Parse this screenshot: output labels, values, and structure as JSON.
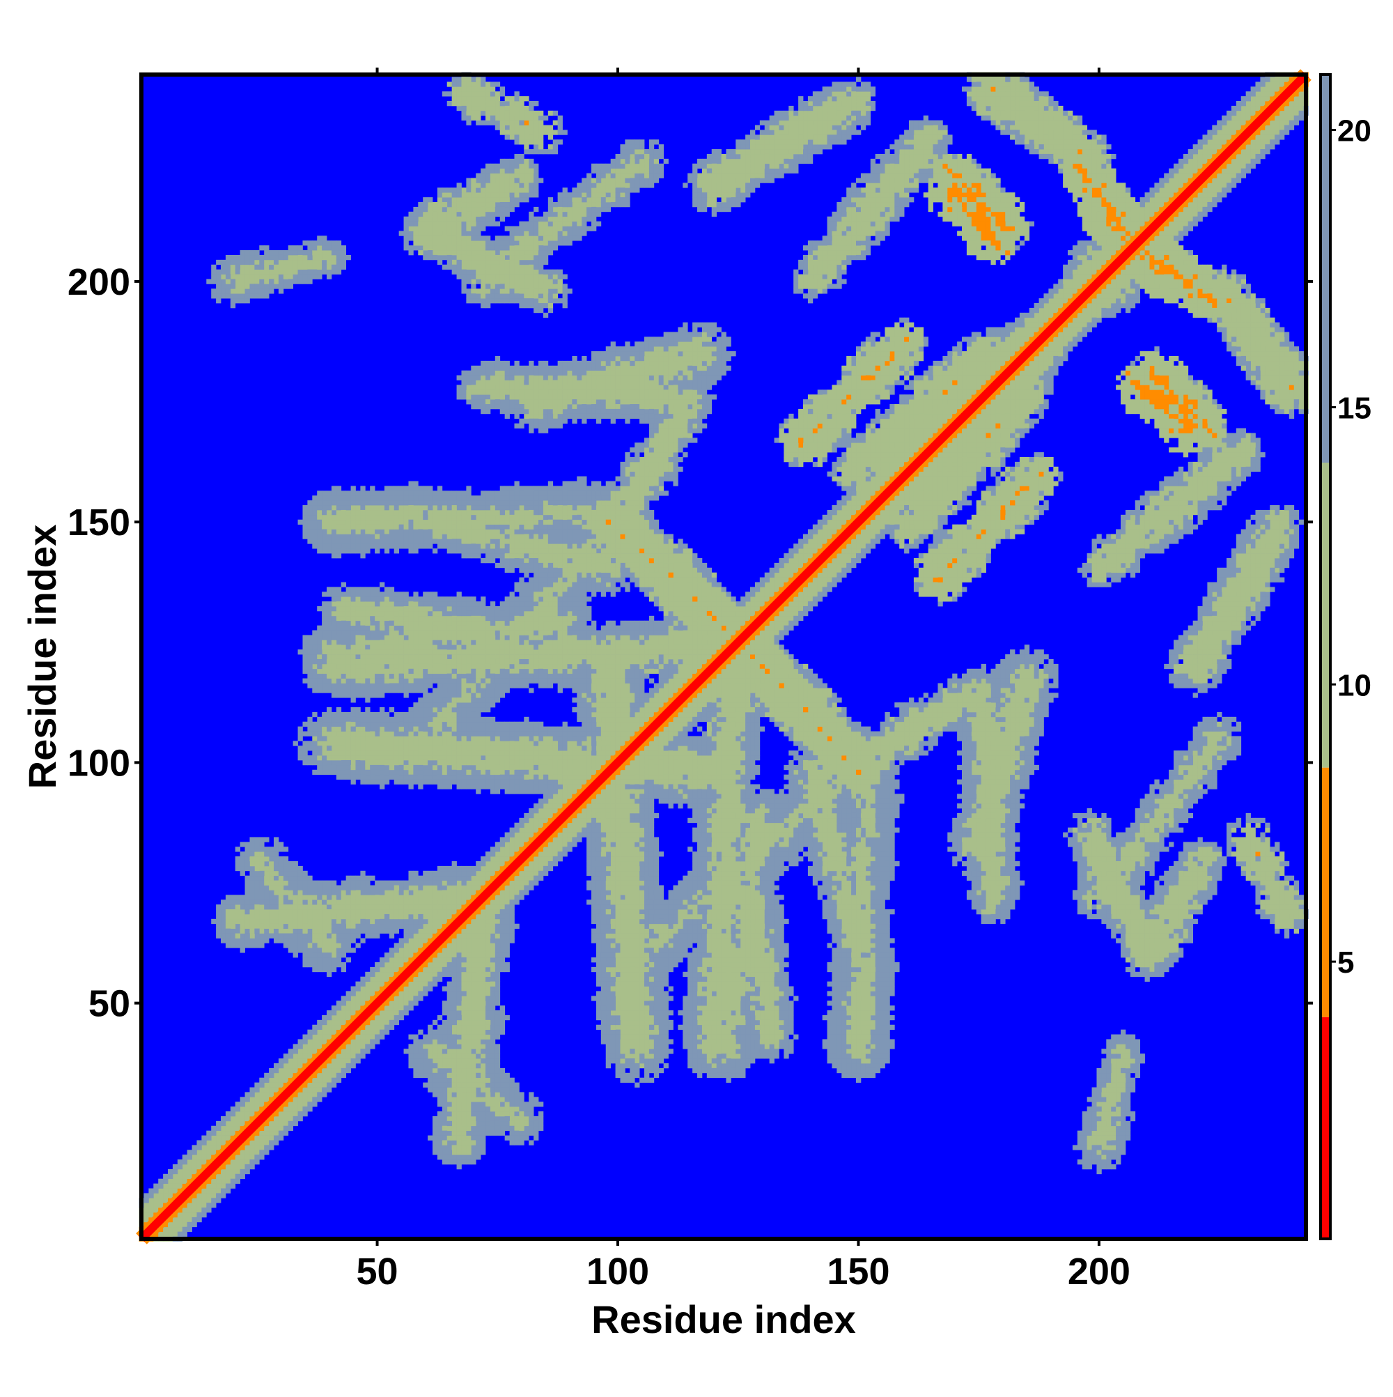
{
  "chart_data": {
    "type": "heatmap",
    "title": "",
    "xlabel": "Residue index",
    "ylabel": "Residue index",
    "xlim": [
      1,
      243
    ],
    "ylim": [
      1,
      243
    ],
    "x_ticks": [
      50,
      100,
      150,
      200
    ],
    "y_ticks": [
      50,
      100,
      150,
      200
    ],
    "x_tick_labels": [
      "50",
      "100",
      "150",
      "200"
    ],
    "y_tick_labels": [
      "50",
      "100",
      "150",
      "200"
    ],
    "colorbar": {
      "range": [
        0,
        21
      ],
      "ticks": [
        5,
        10,
        15,
        20
      ],
      "tick_labels": [
        "5",
        "10",
        "15",
        "20"
      ],
      "bands": [
        {
          "from": 0,
          "to": 4,
          "color": "#ff0000"
        },
        {
          "from": 4,
          "to": 8.5,
          "color": "#ff8c00"
        },
        {
          "from": 8.5,
          "to": 14,
          "color": "#a9bf8a"
        },
        {
          "from": 14,
          "to": 21,
          "color": "#7f97b6"
        }
      ]
    },
    "background_color": "#0000ff",
    "grid": false,
    "legend": "colorbar-right",
    "contact_bands": [
      {
        "x": [
          1,
          243
        ],
        "y": [
          1,
          243
        ],
        "width": 6,
        "value": 6
      },
      {
        "x": [
          100,
          126
        ],
        "y": [
          150,
          124
        ],
        "width": 4,
        "value": 9
      },
      {
        "x": [
          126,
          150
        ],
        "y": [
          124,
          98
        ],
        "width": 4,
        "value": 9
      },
      {
        "x": [
          138,
          160
        ],
        "y": [
          166,
          188
        ],
        "width": 3,
        "value": 8
      },
      {
        "x": [
          160,
          185
        ],
        "y": [
          148,
          177
        ],
        "width": 3,
        "value": 9
      },
      {
        "x": [
          170,
          180
        ],
        "y": [
          218,
          207
        ],
        "width": 3,
        "value": 6
      },
      {
        "x": [
          185,
          200
        ],
        "y": [
          180,
          205
        ],
        "width": 3,
        "value": 10
      },
      {
        "x": [
          212,
          224
        ],
        "y": [
          180,
          168
        ],
        "width": 3,
        "value": 7
      },
      {
        "x": [
          210,
          224
        ],
        "y": [
          205,
          196
        ],
        "width": 3,
        "value": 7
      },
      {
        "x": [
          178,
          198
        ],
        "y": [
          240,
          225
        ],
        "width": 3,
        "value": 9
      },
      {
        "x": [
          72,
          105
        ],
        "y": [
          200,
          225
        ],
        "width": 3,
        "value": 11
      },
      {
        "x": [
          82,
          118
        ],
        "y": [
          175,
          185
        ],
        "width": 4,
        "value": 11
      },
      {
        "x": [
          40,
          120
        ],
        "y": [
          104,
          98
        ],
        "width": 5,
        "value": 11
      },
      {
        "x": [
          40,
          118
        ],
        "y": [
          120,
          124
        ],
        "width": 4,
        "value": 11
      },
      {
        "x": [
          42,
          72
        ],
        "y": [
          132,
          128
        ],
        "width": 3,
        "value": 11
      },
      {
        "x": [
          40,
          58
        ],
        "y": [
          150,
          152
        ],
        "width": 4,
        "value": 12
      },
      {
        "x": [
          62,
          100
        ],
        "y": [
          150,
          140
        ],
        "width": 3,
        "value": 11
      },
      {
        "x": [
          20,
          68
        ],
        "y": [
          67,
          72
        ],
        "width": 4,
        "value": 11
      },
      {
        "x": [
          62,
          80
        ],
        "y": [
          40,
          25
        ],
        "width": 4,
        "value": 12
      },
      {
        "x": [
          105,
          145
        ],
        "y": [
          60,
          95
        ],
        "width": 4,
        "value": 12
      },
      {
        "x": [
          123,
          129
        ],
        "y": [
          40,
          90
        ],
        "width": 4,
        "value": 12
      },
      {
        "x": [
          150,
          152
        ],
        "y": [
          40,
          100
        ],
        "width": 4,
        "value": 12
      },
      {
        "x": [
          178,
          176
        ],
        "y": [
          70,
          115
        ],
        "width": 3,
        "value": 11
      },
      {
        "x": [
          210,
          198
        ],
        "y": [
          60,
          85
        ],
        "width": 3,
        "value": 10
      },
      {
        "x": [
          210,
          222
        ],
        "y": [
          60,
          80
        ],
        "width": 3,
        "value": 10
      },
      {
        "x": [
          220,
          238
        ],
        "y": [
          120,
          150
        ],
        "width": 3,
        "value": 10
      },
      {
        "x": [
          150,
          175
        ],
        "y": [
          100,
          115
        ],
        "width": 3,
        "value": 10
      },
      {
        "x": [
          140,
          165
        ],
        "y": [
          200,
          230
        ],
        "width": 3,
        "value": 10
      },
      {
        "x": [
          20,
          40
        ],
        "y": [
          200,
          205
        ],
        "width": 2,
        "value": 11
      },
      {
        "x": [
          68,
          84
        ],
        "y": [
          239,
          231
        ],
        "width": 2,
        "value": 9
      }
    ]
  }
}
